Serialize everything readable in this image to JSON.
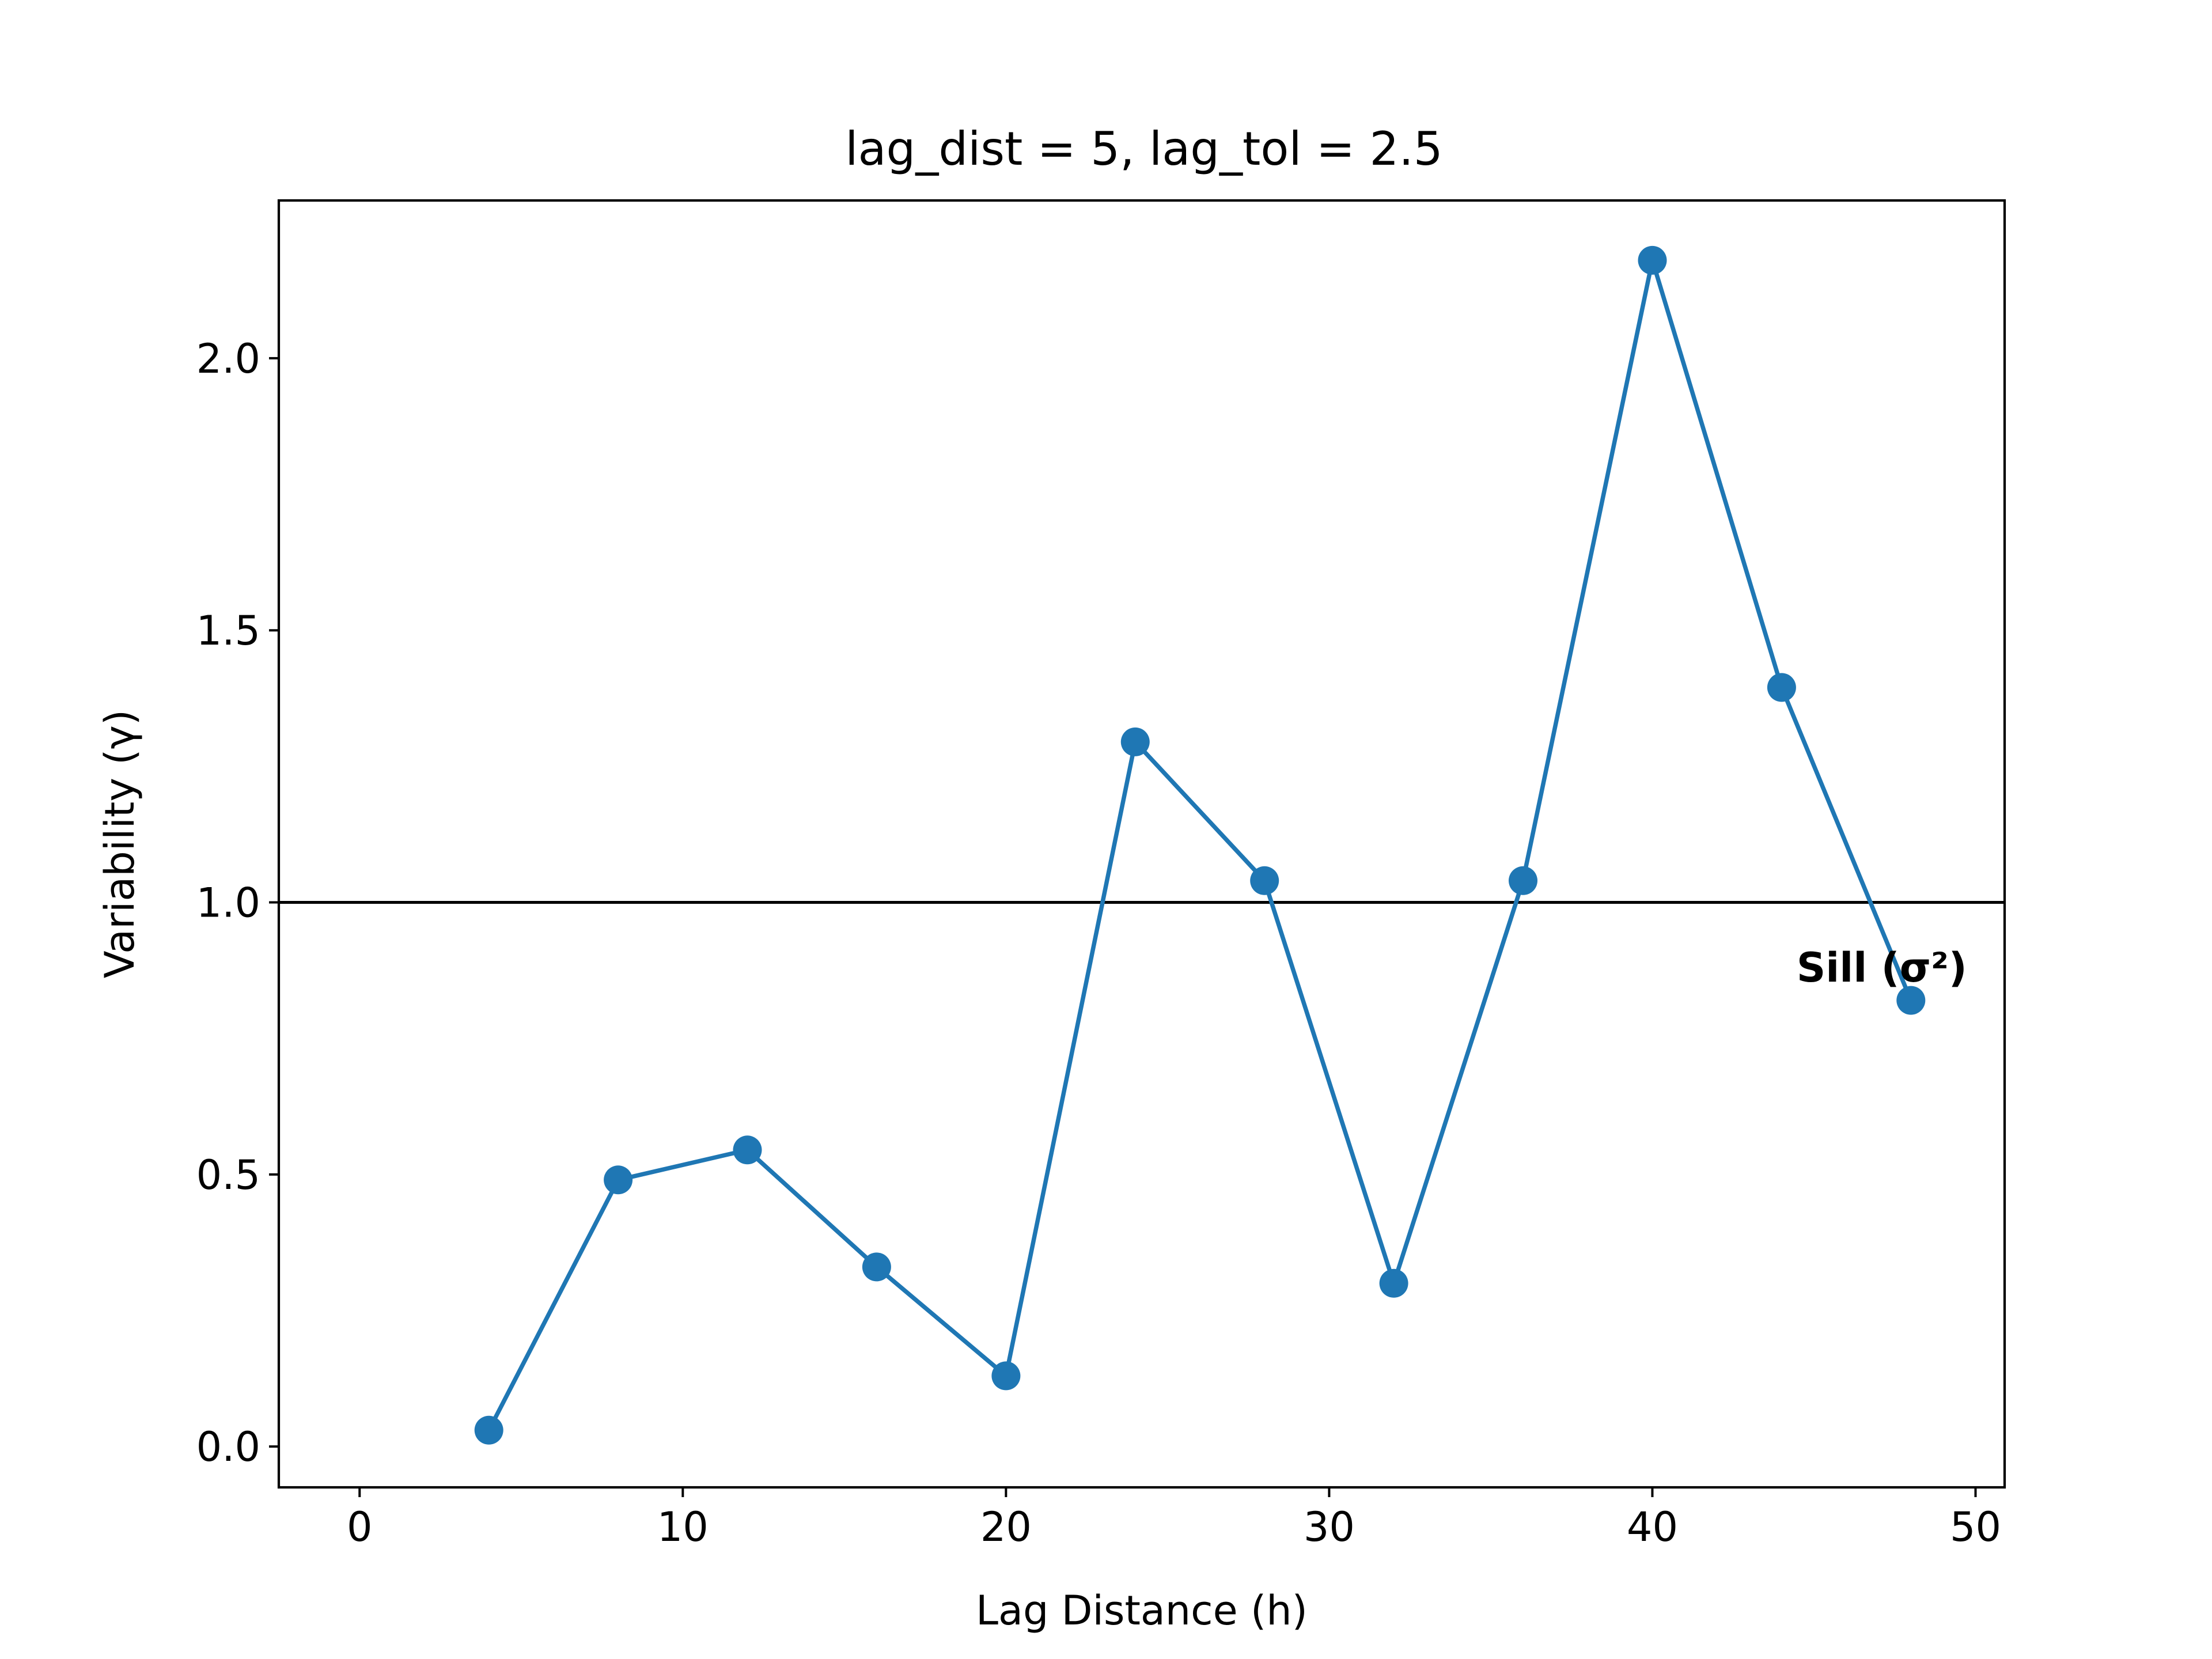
{
  "chart_data": {
    "type": "line",
    "title": "lag_dist = 5, lag_tol = 2.5",
    "xlabel": "Lag Distance (h)",
    "ylabel": "Variability (γ)",
    "xlim": [
      -2.5,
      50.9
    ],
    "ylim": [
      -0.075,
      2.29
    ],
    "xticks": [
      0,
      10,
      20,
      30,
      40,
      50
    ],
    "xtick_labels": [
      "0",
      "10",
      "20",
      "30",
      "40",
      "50"
    ],
    "yticks": [
      0.0,
      0.5,
      1.0,
      1.5,
      2.0
    ],
    "ytick_labels": [
      "0.0",
      "0.5",
      "1.0",
      "1.5",
      "2.0"
    ],
    "grid": false,
    "series": [
      {
        "x": [
          4,
          8,
          12,
          16,
          20,
          24,
          28,
          32,
          36,
          40,
          44,
          48
        ],
        "y": [
          0.03,
          0.49,
          0.545,
          0.33,
          0.13,
          1.295,
          1.04,
          0.3,
          1.04,
          2.18,
          1.395,
          0.82
        ],
        "color": "#1f77b4",
        "marker": "circle"
      }
    ],
    "reference_line": {
      "y": 1.0,
      "color": "#000000"
    },
    "annotation": {
      "text": "Sill (σ²)",
      "x": 47.1,
      "y": 0.88
    }
  }
}
